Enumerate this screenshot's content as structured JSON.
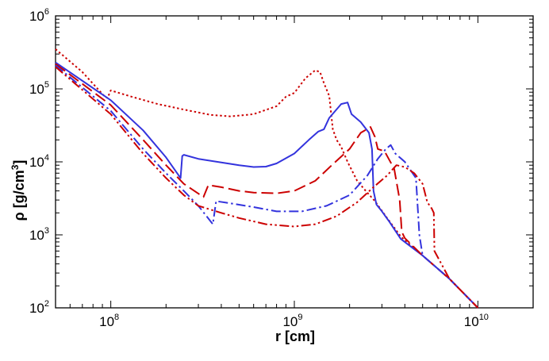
{
  "chart_data": {
    "type": "line",
    "xscale": "log",
    "yscale": "log",
    "xlim": [
      50000000.0,
      20000000000.0
    ],
    "ylim": [
      100,
      1000000
    ],
    "xlabel": {
      "text": "r [cm]"
    },
    "ylabel": {
      "prefix": "ρ [g/cm",
      "sup": "3",
      "suffix": "]"
    },
    "xticks": [
      {
        "base": "10",
        "exp": "8",
        "value": 100000000.0
      },
      {
        "base": "10",
        "exp": "9",
        "value": 1000000000.0
      },
      {
        "base": "10",
        "exp": "10",
        "value": 10000000000.0
      }
    ],
    "yticks": [
      {
        "base": "10",
        "exp": "2",
        "value": 100
      },
      {
        "base": "10",
        "exp": "3",
        "value": 1000
      },
      {
        "base": "10",
        "exp": "4",
        "value": 10000
      },
      {
        "base": "10",
        "exp": "5",
        "value": 100000
      },
      {
        "base": "10",
        "exp": "6",
        "value": 1000000
      }
    ],
    "grid": false,
    "series": [
      {
        "name": "red-dotted",
        "color": "#cc0000",
        "style": "dotted",
        "points": [
          [
            50000000.0,
            350000
          ],
          [
            70000000.0,
            170000
          ],
          [
            92000000.0,
            80000
          ],
          [
            96000000.0,
            75000
          ],
          [
            100000000.0,
            95000
          ],
          [
            130000000.0,
            78000
          ],
          [
            180000000.0,
            62000
          ],
          [
            250000000.0,
            52000
          ],
          [
            350000000.0,
            44000
          ],
          [
            450000000.0,
            42000
          ],
          [
            600000000.0,
            45000
          ],
          [
            800000000.0,
            58000
          ],
          [
            900000000.0,
            78000
          ],
          [
            1000000000.0,
            88000
          ],
          [
            1150000000.0,
            140000
          ],
          [
            1300000000.0,
            180000
          ],
          [
            1380000000.0,
            170000
          ],
          [
            1450000000.0,
            120000
          ],
          [
            1550000000.0,
            80000
          ],
          [
            1620000000.0,
            28000
          ],
          [
            1700000000.0,
            20000
          ],
          [
            1800000000.0,
            16000
          ],
          [
            1950000000.0,
            10000
          ],
          [
            2200000000.0,
            5500
          ],
          [
            2450000000.0,
            4000
          ],
          [
            2750000000.0,
            2900
          ],
          [
            3200000000.0,
            1700
          ],
          [
            3800000000.0,
            950
          ],
          [
            5000000000.0,
            520
          ],
          [
            7000000000.0,
            250
          ],
          [
            10000000000.0,
            100
          ]
        ]
      },
      {
        "name": "blue-solid",
        "color": "#3333dd",
        "style": "solid",
        "points": [
          [
            50000000.0,
            230000
          ],
          [
            100000000.0,
            70000
          ],
          [
            150000000.0,
            27000
          ],
          [
            200000000.0,
            11500
          ],
          [
            240000000.0,
            6000
          ],
          [
            245000000.0,
            12000
          ],
          [
            250000000.0,
            12500
          ],
          [
            300000000.0,
            11000
          ],
          [
            400000000.0,
            9800
          ],
          [
            500000000.0,
            9000
          ],
          [
            600000000.0,
            8500
          ],
          [
            700000000.0,
            8600
          ],
          [
            800000000.0,
            9500
          ],
          [
            1000000000.0,
            13000
          ],
          [
            1200000000.0,
            20000
          ],
          [
            1350000000.0,
            26000
          ],
          [
            1450000000.0,
            28000
          ],
          [
            1550000000.0,
            40000
          ],
          [
            1800000000.0,
            62000
          ],
          [
            1950000000.0,
            65000
          ],
          [
            2050000000.0,
            45000
          ],
          [
            2300000000.0,
            35000
          ],
          [
            2550000000.0,
            25000
          ],
          [
            2650000000.0,
            15000
          ],
          [
            2700000000.0,
            4000
          ],
          [
            2800000000.0,
            2600
          ],
          [
            3000000000.0,
            2100
          ],
          [
            3300000000.0,
            1500
          ],
          [
            3800000000.0,
            880
          ],
          [
            5000000000.0,
            520
          ],
          [
            7000000000.0,
            250
          ],
          [
            10000000000.0,
            100
          ]
        ]
      },
      {
        "name": "red-dashed",
        "color": "#cc0000",
        "style": "dashed",
        "points": [
          [
            50000000.0,
            220000
          ],
          [
            100000000.0,
            60000
          ],
          [
            150000000.0,
            20000
          ],
          [
            200000000.0,
            9000
          ],
          [
            250000000.0,
            5000
          ],
          [
            320000000.0,
            3300
          ],
          [
            340000000.0,
            4800
          ],
          [
            400000000.0,
            4500
          ],
          [
            500000000.0,
            4000
          ],
          [
            600000000.0,
            3800
          ],
          [
            800000000.0,
            3700
          ],
          [
            1000000000.0,
            4000
          ],
          [
            1300000000.0,
            5500
          ],
          [
            1600000000.0,
            9000
          ],
          [
            2000000000.0,
            15000
          ],
          [
            2300000000.0,
            25000
          ],
          [
            2600000000.0,
            30000
          ],
          [
            2750000000.0,
            22000
          ],
          [
            2850000000.0,
            15000
          ],
          [
            3100000000.0,
            14000
          ],
          [
            3500000000.0,
            8000
          ],
          [
            3750000000.0,
            3000
          ],
          [
            3850000000.0,
            1100
          ],
          [
            4000000000.0,
            900
          ],
          [
            5000000000.0,
            520
          ],
          [
            7000000000.0,
            250
          ],
          [
            10000000000.0,
            100
          ]
        ]
      },
      {
        "name": "blue-dashdot",
        "color": "#3333dd",
        "style": "dashdot",
        "points": [
          [
            50000000.0,
            210000
          ],
          [
            100000000.0,
            50000
          ],
          [
            150000000.0,
            15000
          ],
          [
            200000000.0,
            7000
          ],
          [
            250000000.0,
            4000
          ],
          [
            300000000.0,
            2500
          ],
          [
            360000000.0,
            1400
          ],
          [
            375000000.0,
            2900
          ],
          [
            450000000.0,
            2700
          ],
          [
            600000000.0,
            2400
          ],
          [
            800000000.0,
            2100
          ],
          [
            1100000000.0,
            2100
          ],
          [
            1500000000.0,
            2500
          ],
          [
            2000000000.0,
            3500
          ],
          [
            2500000000.0,
            6500
          ],
          [
            2850000000.0,
            11000
          ],
          [
            3150000000.0,
            15000
          ],
          [
            3350000000.0,
            17000
          ],
          [
            3550000000.0,
            13000
          ],
          [
            4000000000.0,
            10000
          ],
          [
            4600000000.0,
            6000
          ],
          [
            4800000000.0,
            1000
          ],
          [
            5000000000.0,
            520
          ],
          [
            7000000000.0,
            250
          ],
          [
            10000000000.0,
            100
          ]
        ]
      },
      {
        "name": "red-dashdotdot",
        "color": "#cc0000",
        "style": "dashdotdot",
        "points": [
          [
            50000000.0,
            200000
          ],
          [
            100000000.0,
            45000
          ],
          [
            150000000.0,
            13000
          ],
          [
            200000000.0,
            6000
          ],
          [
            250000000.0,
            3500
          ],
          [
            300000000.0,
            2500
          ],
          [
            400000000.0,
            2000
          ],
          [
            500000000.0,
            1700
          ],
          [
            700000000.0,
            1400
          ],
          [
            1000000000.0,
            1300
          ],
          [
            1300000000.0,
            1400
          ],
          [
            1700000000.0,
            1800
          ],
          [
            2200000000.0,
            2800
          ],
          [
            2700000000.0,
            4500
          ],
          [
            3200000000.0,
            6500
          ],
          [
            3600000000.0,
            9000
          ],
          [
            4000000000.0,
            8500
          ],
          [
            4500000000.0,
            7000
          ],
          [
            5000000000.0,
            5000
          ],
          [
            5300000000.0,
            2800
          ],
          [
            5600000000.0,
            2300
          ],
          [
            5750000000.0,
            2000
          ],
          [
            5800000000.0,
            600
          ],
          [
            7000000000.0,
            250
          ],
          [
            10000000000.0,
            100
          ]
        ]
      }
    ]
  }
}
